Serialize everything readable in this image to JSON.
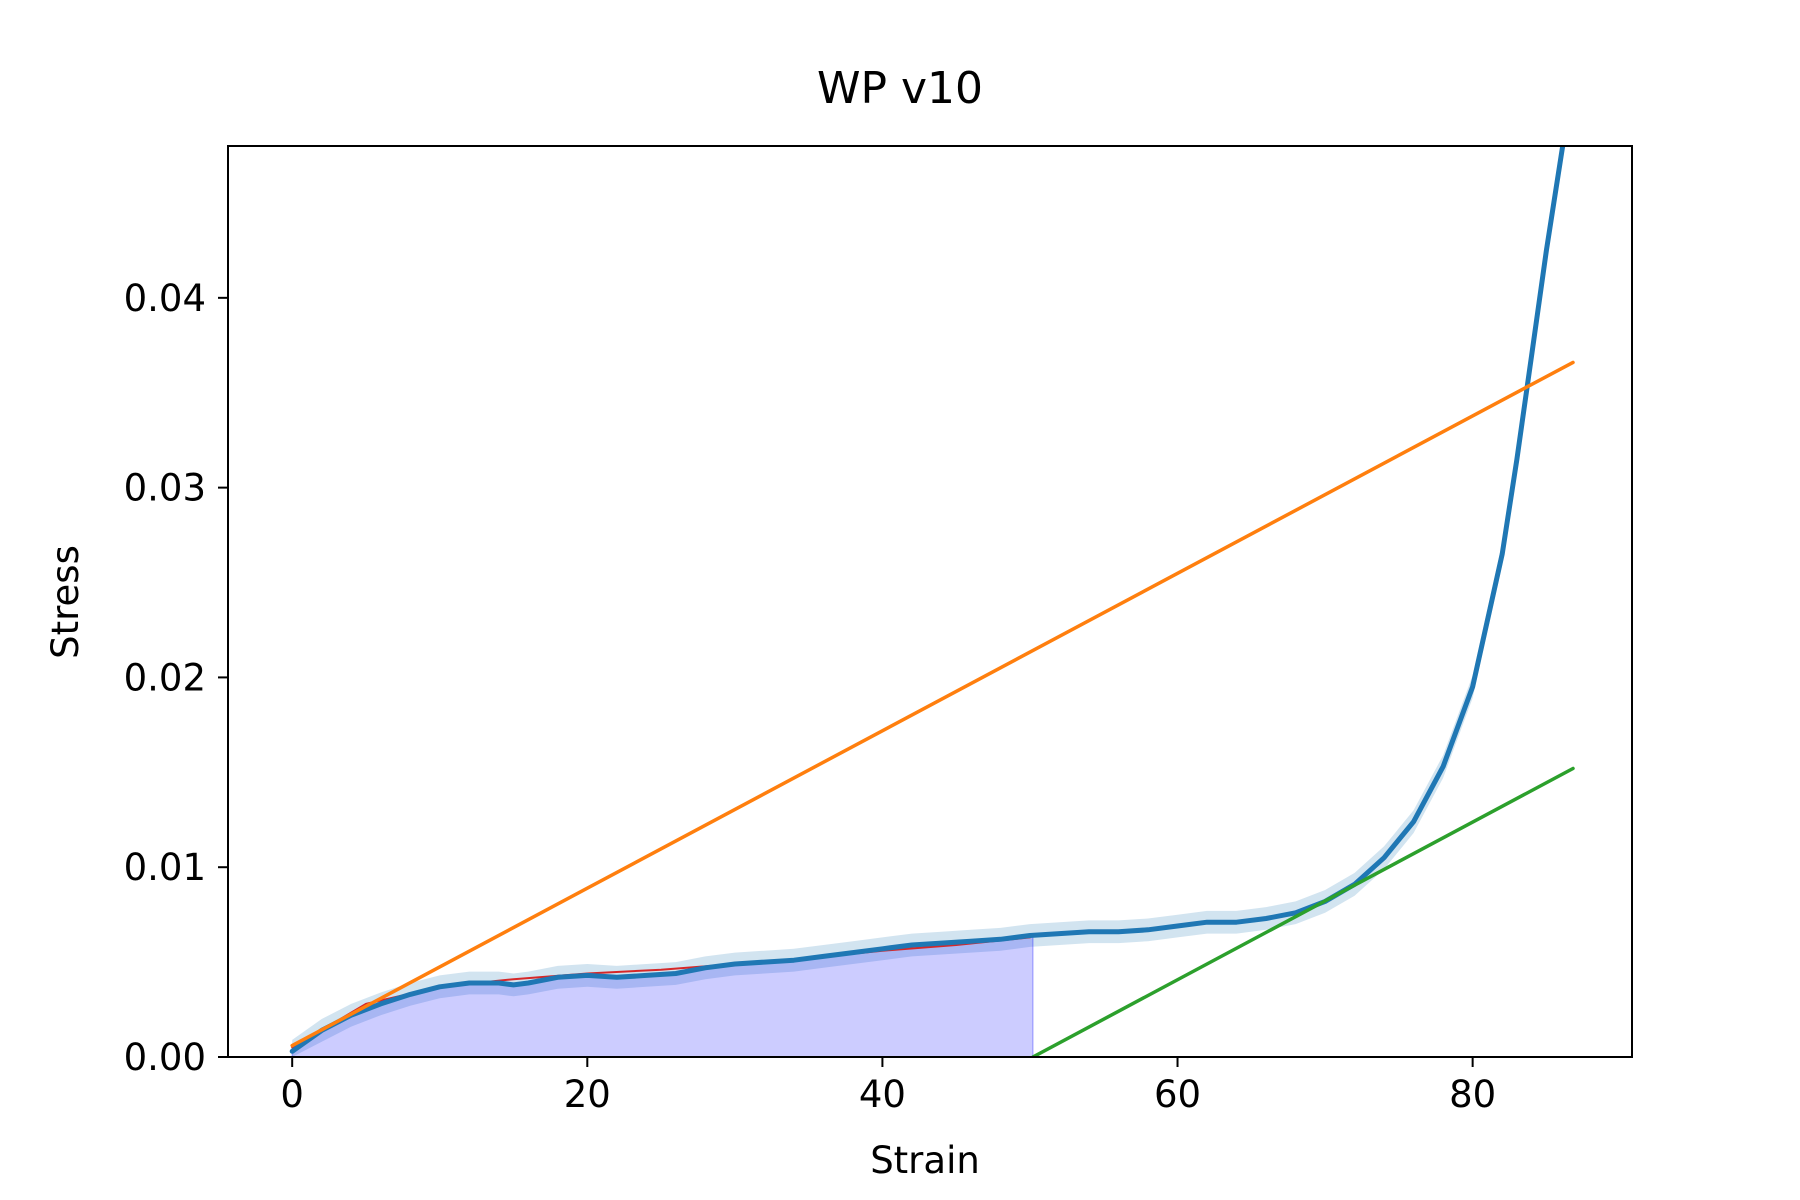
{
  "chart_data": {
    "type": "line",
    "title": "WP v10",
    "xlabel": "Strain",
    "ylabel": "Stress",
    "xlim": [
      -4.35,
      90.8
    ],
    "ylim": [
      0,
      0.048
    ],
    "xticks": [
      0,
      20,
      40,
      60,
      80
    ],
    "xtick_labels": [
      "0",
      "20",
      "40",
      "60",
      "80"
    ],
    "yticks": [
      0,
      0.01,
      0.02,
      0.03,
      0.04
    ],
    "ytick_labels": [
      "0.00",
      "0.01",
      "0.02",
      "0.03",
      "0.04"
    ],
    "grid": false,
    "legend": "none",
    "series": [
      {
        "kind": "band",
        "color": "#1f77b4",
        "x": [
          0,
          2,
          4,
          6,
          8,
          10,
          12,
          14,
          15,
          16,
          18,
          20,
          22,
          24,
          26,
          28,
          30,
          32,
          34,
          36,
          38,
          40,
          42,
          44,
          46,
          48,
          50,
          52,
          54,
          56,
          58,
          60,
          62,
          64,
          66,
          68,
          70,
          72,
          74,
          76,
          78,
          80,
          82,
          83,
          84,
          85,
          86,
          86.5,
          86.8
        ],
        "y": [
          0.0003,
          0.0014,
          0.0022,
          0.0028,
          0.0033,
          0.0037,
          0.0039,
          0.0039,
          0.0038,
          0.0039,
          0.0042,
          0.0043,
          0.0042,
          0.0043,
          0.0044,
          0.0047,
          0.0049,
          0.005,
          0.0051,
          0.0053,
          0.0055,
          0.0057,
          0.0059,
          0.006,
          0.0061,
          0.0062,
          0.0064,
          0.0065,
          0.0066,
          0.0066,
          0.0067,
          0.0069,
          0.0071,
          0.0071,
          0.0073,
          0.0076,
          0.0082,
          0.0091,
          0.0105,
          0.0124,
          0.0153,
          0.0195,
          0.0265,
          0.0315,
          0.037,
          0.0425,
          0.0475,
          0.05,
          0.052
        ],
        "spread": 0.0006
      },
      {
        "kind": "line",
        "color": "#d62728",
        "x": [
          0,
          5,
          10,
          15,
          20,
          25,
          30,
          35,
          40,
          45,
          50
        ],
        "y": [
          0.0005,
          0.0028,
          0.0037,
          0.0041,
          0.0044,
          0.0046,
          0.0049,
          0.0052,
          0.0056,
          0.0059,
          0.0063
        ]
      },
      {
        "kind": "line",
        "color": "#1f77b4",
        "x": [
          0,
          2,
          4,
          6,
          8,
          10,
          12,
          14,
          15,
          16,
          18,
          20,
          22,
          24,
          26,
          28,
          30,
          32,
          34,
          36,
          38,
          40,
          42,
          44,
          46,
          48,
          50,
          52,
          54,
          56,
          58,
          60,
          62,
          64,
          66,
          68,
          70,
          72,
          74,
          76,
          78,
          80,
          82,
          83,
          84,
          85,
          86,
          86.5,
          86.8
        ],
        "y": [
          0.0003,
          0.0014,
          0.0022,
          0.0028,
          0.0033,
          0.0037,
          0.0039,
          0.0039,
          0.0038,
          0.0039,
          0.0042,
          0.0043,
          0.0042,
          0.0043,
          0.0044,
          0.0047,
          0.0049,
          0.005,
          0.0051,
          0.0053,
          0.0055,
          0.0057,
          0.0059,
          0.006,
          0.0061,
          0.0062,
          0.0064,
          0.0065,
          0.0066,
          0.0066,
          0.0067,
          0.0069,
          0.0071,
          0.0071,
          0.0073,
          0.0076,
          0.0082,
          0.0091,
          0.0105,
          0.0124,
          0.0153,
          0.0195,
          0.0265,
          0.0315,
          0.037,
          0.0425,
          0.0475,
          0.05,
          0.052
        ]
      },
      {
        "kind": "line",
        "color": "#ff7f0e",
        "x": [
          0,
          86.8
        ],
        "y": [
          0.0006,
          0.0366
        ]
      },
      {
        "kind": "line",
        "color": "#2ca02c",
        "x": [
          50.2,
          86.8
        ],
        "y": [
          0,
          0.0152
        ]
      }
    ],
    "filled_area": {
      "color": "#0000ff",
      "opacity": 0.2,
      "x_range": [
        0,
        50.2
      ]
    }
  }
}
